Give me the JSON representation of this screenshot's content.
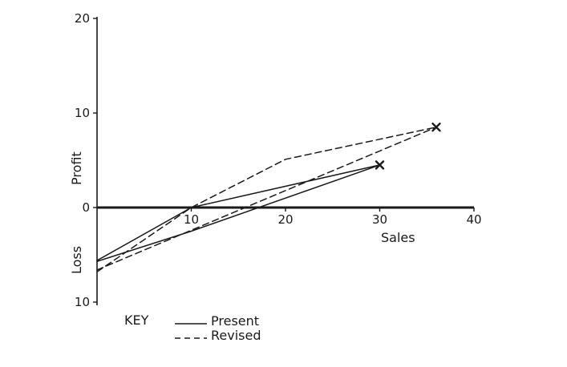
{
  "chart_data": {
    "type": "line",
    "xlabel": "Sales",
    "ylabel_top": "Profit",
    "ylabel_bottom": "Loss",
    "xlim": [
      0,
      40
    ],
    "ylim": [
      -10,
      20
    ],
    "x_ticks": [
      {
        "value": 10,
        "label": "10"
      },
      {
        "value": 20,
        "label": "20"
      },
      {
        "value": 30,
        "label": "30"
      },
      {
        "value": 40,
        "label": "40"
      }
    ],
    "y_ticks": [
      {
        "value": 20,
        "label": "20"
      },
      {
        "value": 10,
        "label": "10"
      },
      {
        "value": 0,
        "label": "0"
      },
      {
        "value": -10,
        "label": "10"
      }
    ],
    "key_label": "KEY",
    "series": [
      {
        "name": "Present",
        "style": "solid",
        "paths": [
          [
            [
              0,
              -5.6
            ],
            [
              10,
              0
            ],
            [
              30,
              4.5
            ]
          ],
          [
            [
              0,
              -5.7
            ],
            [
              10,
              -2.5
            ],
            [
              30,
              4.5
            ]
          ]
        ],
        "endpoint": [
          30,
          4.5
        ]
      },
      {
        "name": "Revised",
        "style": "dashed",
        "paths": [
          [
            [
              0,
              -6.8
            ],
            [
              10,
              0
            ],
            [
              20,
              5.1
            ],
            [
              36,
              8.5
            ]
          ],
          [
            [
              0,
              -6.6
            ],
            [
              10,
              -2.4
            ],
            [
              36,
              8.5
            ]
          ]
        ],
        "endpoint": [
          36,
          8.5
        ]
      }
    ],
    "grid": false,
    "legend": "bottom-left"
  }
}
